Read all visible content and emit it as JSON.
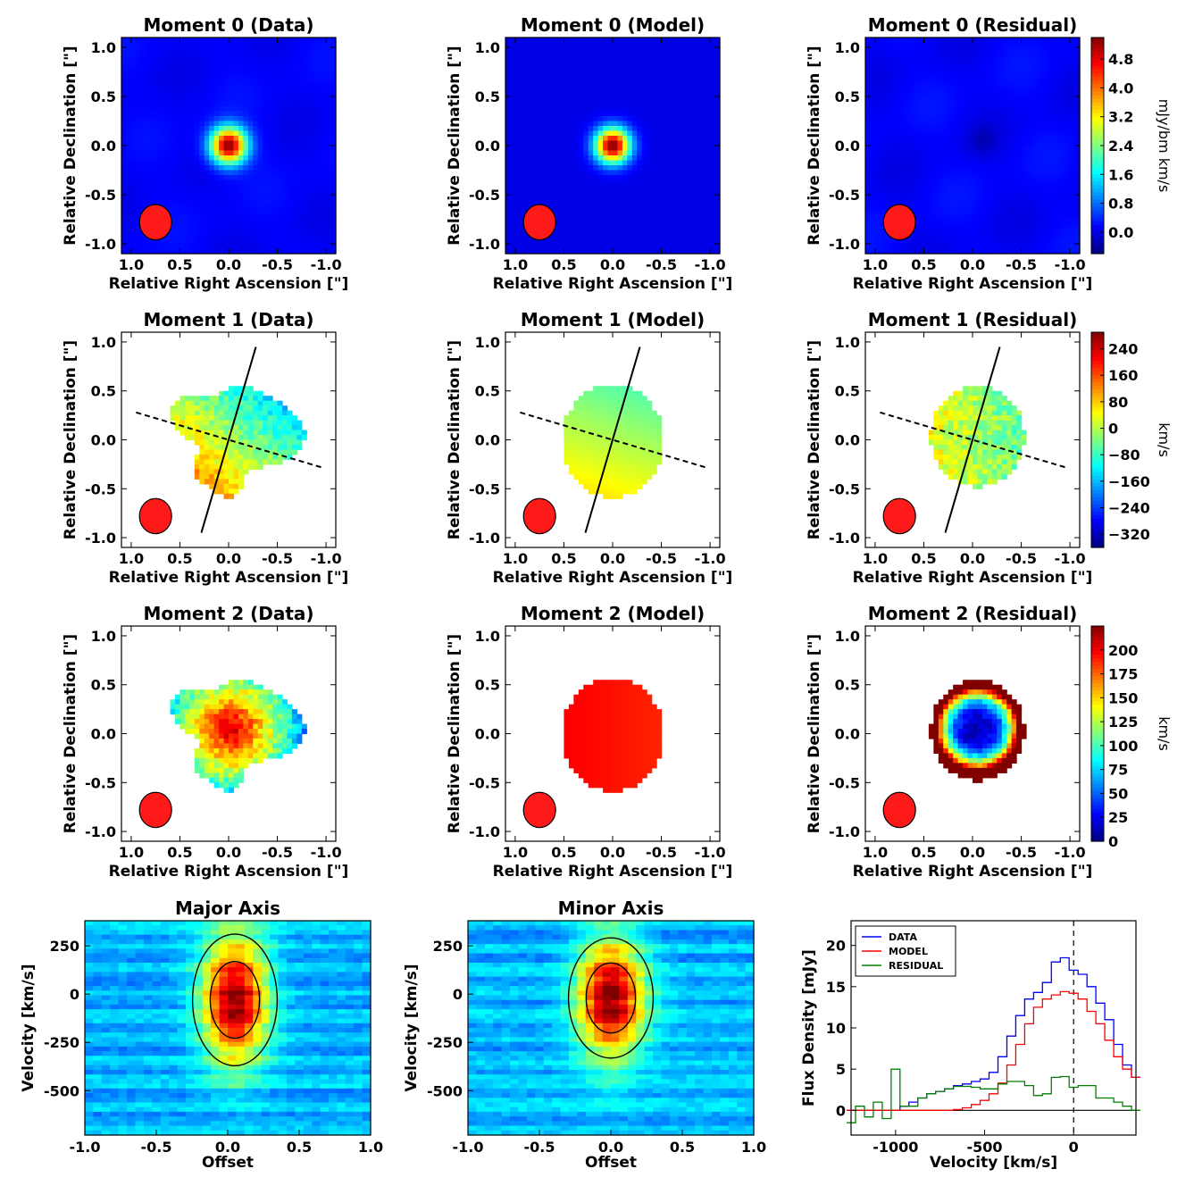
{
  "chart_data": [
    {
      "id": "m0d",
      "type": "heatmap",
      "title": "Moment 0 (Data)",
      "xlabel": "Relative Right Ascension [\"]",
      "ylabel": "Relative Declination [\"]",
      "xlim": [
        1.1,
        -1.1
      ],
      "ylim": [
        -1.1,
        1.1
      ],
      "xticks": [
        "1.0",
        "0.5",
        "0.0",
        "-0.5",
        "-1.0"
      ],
      "yticks": [
        "1.0",
        "0.5",
        "0.0",
        "-0.5",
        "-1.0"
      ],
      "source": {
        "peak_x": 0.0,
        "peak_y": 0.0,
        "width": 0.22
      },
      "beam": {
        "x": 0.75,
        "y": -0.78,
        "major": 0.36,
        "minor": 0.33
      }
    },
    {
      "id": "m0m",
      "type": "heatmap",
      "title": "Moment 0 (Model)",
      "xlabel": "Relative Right Ascension [\"]",
      "ylabel": "Relative Declination [\"]",
      "xlim": [
        1.1,
        -1.1
      ],
      "ylim": [
        -1.1,
        1.1
      ],
      "xticks": [
        "1.0",
        "0.5",
        "0.0",
        "-0.5",
        "-1.0"
      ],
      "yticks": [
        "1.0",
        "0.5",
        "0.0",
        "-0.5",
        "-1.0"
      ],
      "source": {
        "peak_x": 0.0,
        "peak_y": 0.0,
        "width": 0.21
      },
      "beam": {
        "x": 0.75,
        "y": -0.78,
        "major": 0.36,
        "minor": 0.33
      }
    },
    {
      "id": "m0r",
      "type": "heatmap",
      "title": "Moment 0 (Residual)",
      "xlabel": "Relative Right Ascension [\"]",
      "ylabel": "Relative Declination [\"]",
      "xlim": [
        1.1,
        -1.1
      ],
      "ylim": [
        -1.1,
        1.1
      ],
      "xticks": [
        "1.0",
        "0.5",
        "0.0",
        "-0.5",
        "-1.0"
      ],
      "yticks": [
        "1.0",
        "0.5",
        "0.0",
        "-0.5",
        "-1.0"
      ],
      "colorbar": {
        "label": "mJy/bm km/s",
        "ticks": [
          "4.8",
          "4.0",
          "3.2",
          "2.4",
          "1.6",
          "0.8",
          "0.0"
        ],
        "range": [
          -0.6,
          5.4
        ]
      },
      "beam": {
        "x": 0.75,
        "y": -0.78,
        "major": 0.36,
        "minor": 0.33
      }
    },
    {
      "id": "m1d",
      "type": "heatmap",
      "title": "Moment 1 (Data)",
      "xlabel": "Relative Right Ascension [\"]",
      "ylabel": "Relative Declination [\"]",
      "xlim": [
        1.1,
        -1.1
      ],
      "ylim": [
        -1.1,
        1.1
      ],
      "xticks": [
        "1.0",
        "0.5",
        "0.0",
        "-0.5",
        "-1.0"
      ],
      "yticks": [
        "1.0",
        "0.5",
        "0.0",
        "-0.5",
        "-1.0"
      ],
      "major_axis": [
        [
          0.28,
          -0.95
        ],
        [
          -0.28,
          0.95
        ]
      ],
      "minor_axis": [
        [
          0.95,
          0.28
        ],
        [
          -0.95,
          -0.28
        ]
      ],
      "beam": {
        "x": 0.75,
        "y": -0.78,
        "major": 0.36,
        "minor": 0.33
      }
    },
    {
      "id": "m1m",
      "type": "heatmap",
      "title": "Moment 1 (Model)",
      "xlabel": "Relative Right Ascension [\"]",
      "ylabel": "Relative Declination [\"]",
      "xlim": [
        1.1,
        -1.1
      ],
      "ylim": [
        -1.1,
        1.1
      ],
      "xticks": [
        "1.0",
        "0.5",
        "0.0",
        "-0.5",
        "-1.0"
      ],
      "yticks": [
        "1.0",
        "0.5",
        "0.0",
        "-0.5",
        "-1.0"
      ],
      "major_axis": [
        [
          0.28,
          -0.95
        ],
        [
          -0.28,
          0.95
        ]
      ],
      "minor_axis": [
        [
          0.95,
          0.28
        ],
        [
          -0.95,
          -0.28
        ]
      ],
      "beam": {
        "x": 0.75,
        "y": -0.78,
        "major": 0.36,
        "minor": 0.33
      }
    },
    {
      "id": "m1r",
      "type": "heatmap",
      "title": "Moment 1 (Residual)",
      "xlabel": "Relative Right Ascension [\"]",
      "ylabel": "Relative Declination [\"]",
      "xlim": [
        1.1,
        -1.1
      ],
      "ylim": [
        -1.1,
        1.1
      ],
      "xticks": [
        "1.0",
        "0.5",
        "0.0",
        "-0.5",
        "-1.0"
      ],
      "yticks": [
        "1.0",
        "0.5",
        "0.0",
        "-0.5",
        "-1.0"
      ],
      "colorbar": {
        "label": "km/s",
        "ticks": [
          "240",
          "160",
          "80",
          "0",
          "−80",
          "−160",
          "−240",
          "−320"
        ],
        "range": [
          -360,
          290
        ]
      },
      "major_axis": [
        [
          0.28,
          -0.95
        ],
        [
          -0.28,
          0.95
        ]
      ],
      "minor_axis": [
        [
          0.95,
          0.28
        ],
        [
          -0.95,
          -0.28
        ]
      ],
      "beam": {
        "x": 0.75,
        "y": -0.78,
        "major": 0.36,
        "minor": 0.33
      }
    },
    {
      "id": "m2d",
      "type": "heatmap",
      "title": "Moment 2 (Data)",
      "xlabel": "Relative Right Ascension [\"]",
      "ylabel": "Relative Declination [\"]",
      "xlim": [
        1.1,
        -1.1
      ],
      "ylim": [
        -1.1,
        1.1
      ],
      "xticks": [
        "1.0",
        "0.5",
        "0.0",
        "-0.5",
        "-1.0"
      ],
      "yticks": [
        "1.0",
        "0.5",
        "0.0",
        "-0.5",
        "-1.0"
      ],
      "beam": {
        "x": 0.75,
        "y": -0.78,
        "major": 0.36,
        "minor": 0.33
      }
    },
    {
      "id": "m2m",
      "type": "heatmap",
      "title": "Moment 2 (Model)",
      "xlabel": "Relative Right Ascension [\"]",
      "ylabel": "Relative Declination [\"]",
      "xlim": [
        1.1,
        -1.1
      ],
      "ylim": [
        -1.1,
        1.1
      ],
      "xticks": [
        "1.0",
        "0.5",
        "0.0",
        "-0.5",
        "-1.0"
      ],
      "yticks": [
        "1.0",
        "0.5",
        "0.0",
        "-0.5",
        "-1.0"
      ],
      "beam": {
        "x": 0.75,
        "y": -0.78,
        "major": 0.36,
        "minor": 0.33
      }
    },
    {
      "id": "m2r",
      "type": "heatmap",
      "title": "Moment 2 (Residual)",
      "xlabel": "Relative Right Ascension [\"]",
      "ylabel": "Relative Declination [\"]",
      "xlim": [
        1.1,
        -1.1
      ],
      "ylim": [
        -1.1,
        1.1
      ],
      "xticks": [
        "1.0",
        "0.5",
        "0.0",
        "-0.5",
        "-1.0"
      ],
      "yticks": [
        "1.0",
        "0.5",
        "0.0",
        "-0.5",
        "-1.0"
      ],
      "colorbar": {
        "label": "km/s",
        "ticks": [
          "200",
          "175",
          "150",
          "125",
          "100",
          "75",
          "50",
          "25",
          "0"
        ],
        "range": [
          0,
          225
        ]
      },
      "beam": {
        "x": 0.75,
        "y": -0.78,
        "major": 0.36,
        "minor": 0.33
      }
    },
    {
      "id": "pvmaj",
      "type": "heatmap",
      "title": "Major Axis",
      "xlabel": "Offset",
      "ylabel": "Velocity [km/s]",
      "xlim": [
        -1.0,
        1.0
      ],
      "ylim": [
        -730,
        380
      ],
      "xticks": [
        "-1.0",
        "-0.5",
        "0.0",
        "0.5",
        "1.0"
      ],
      "yticks": [
        "250",
        "0",
        "-250",
        "-500"
      ],
      "source": {
        "center_offset": 0.05,
        "center_velocity": -30,
        "sigma_offset": 0.16,
        "sigma_velocity": 230
      },
      "contour_levels": [
        0.3,
        0.62
      ]
    },
    {
      "id": "pvmin",
      "type": "heatmap",
      "title": "Minor Axis",
      "xlabel": "Offset",
      "ylabel": "Velocity [km/s]",
      "xlim": [
        -1.0,
        1.0
      ],
      "ylim": [
        -730,
        380
      ],
      "xticks": [
        "-1.0",
        "-0.5",
        "0.0",
        "0.5",
        "1.0"
      ],
      "yticks": [
        "250",
        "0",
        "-250",
        "-500"
      ],
      "source": {
        "center_offset": 0.0,
        "center_velocity": -20,
        "sigma_offset": 0.16,
        "sigma_velocity": 210
      },
      "contour_levels": [
        0.3,
        0.62
      ]
    },
    {
      "id": "spec",
      "type": "line",
      "title": "",
      "xlabel": "Velocity [km/s]",
      "ylabel": "Flux Density [mJy]",
      "xlim": [
        -1250,
        350
      ],
      "ylim": [
        -3,
        23
      ],
      "xticks": [
        "-1000",
        "-500",
        "0"
      ],
      "yticks": [
        "20",
        "15",
        "10",
        "5",
        "0"
      ],
      "legend": "top-left",
      "vline": 0,
      "x": [
        -1250,
        -1200,
        -1150,
        -1100,
        -1050,
        -1000,
        -950,
        -900,
        -850,
        -800,
        -750,
        -700,
        -650,
        -600,
        -550,
        -500,
        -450,
        -400,
        -350,
        -300,
        -250,
        -200,
        -150,
        -100,
        -50,
        0,
        50,
        100,
        150,
        200,
        250,
        300,
        350
      ],
      "series": [
        {
          "name": "DATA",
          "color": "#0000ff",
          "values": [
            0,
            0,
            0,
            0,
            0,
            0,
            0.5,
            1,
            1.5,
            2,
            2.3,
            2.6,
            3,
            3.2,
            3.5,
            3.8,
            4.6,
            6.5,
            9,
            11.5,
            13.5,
            14.3,
            15.5,
            18,
            18.5,
            17,
            16.5,
            15,
            13,
            11,
            8,
            5.5,
            4
          ]
        },
        {
          "name": "MODEL",
          "color": "#ff0000",
          "values": [
            0,
            0,
            0,
            0,
            0,
            0,
            0,
            0,
            0,
            0,
            0,
            0,
            0.1,
            0.3,
            0.7,
            1.2,
            2,
            3.3,
            5.5,
            8,
            10.5,
            12.5,
            13.5,
            14,
            14.4,
            14.2,
            13.5,
            12,
            10.5,
            8.5,
            6.5,
            5,
            4
          ]
        },
        {
          "name": "RESIDUAL",
          "color": "#008000",
          "values": [
            -1.5,
            0.5,
            -0.8,
            1,
            -1,
            5,
            0.5,
            0.5,
            1.5,
            2,
            2.3,
            2.6,
            2.9,
            2.9,
            2.8,
            2.6,
            2.6,
            3.2,
            3.5,
            3.5,
            3,
            1.8,
            2,
            4,
            4.1,
            2.8,
            3,
            3,
            1.5,
            1.5,
            1,
            0.5,
            0
          ]
        }
      ]
    }
  ]
}
